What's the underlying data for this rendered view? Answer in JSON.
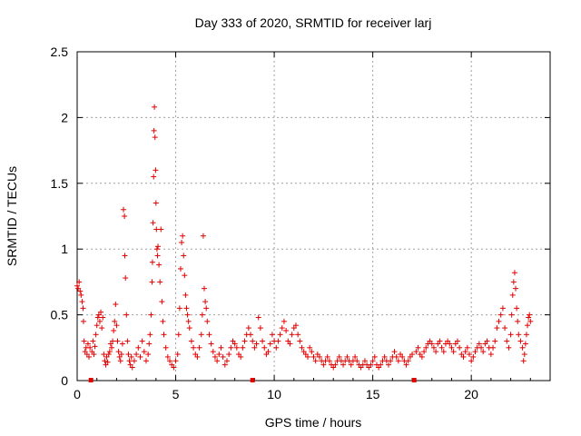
{
  "chart_data": {
    "type": "scatter",
    "title": "Day 333 of 2020, SRMTID for receiver larj",
    "xlabel": "GPS time / hours",
    "ylabel": "SRMTID / TECUs",
    "xlim": [
      0,
      24
    ],
    "ylim": [
      0,
      2.5
    ],
    "xticks": [
      0,
      5,
      10,
      15,
      20
    ],
    "yticks": [
      0,
      0.5,
      1,
      1.5,
      2,
      2.5
    ],
    "xtick_labels": [
      "0",
      "5",
      "10",
      "15",
      "20"
    ],
    "ytick_labels": [
      "0",
      "0.5",
      "1",
      "1.5",
      "2",
      "2.5"
    ],
    "grid": true,
    "marker": "+",
    "color": "#e00000",
    "gap_marker_color": "#e00000",
    "gap_markers_x": [
      0.7,
      8.9,
      17.1
    ],
    "series": [
      {
        "name": "SRMTID",
        "points": [
          [
            0.0,
            0.72
          ],
          [
            0.05,
            0.7
          ],
          [
            0.1,
            0.75
          ],
          [
            0.15,
            0.68
          ],
          [
            0.2,
            0.65
          ],
          [
            0.25,
            0.6
          ],
          [
            0.3,
            0.55
          ],
          [
            0.32,
            0.45
          ],
          [
            0.35,
            0.3
          ],
          [
            0.4,
            0.22
          ],
          [
            0.45,
            0.25
          ],
          [
            0.5,
            0.2
          ],
          [
            0.55,
            0.28
          ],
          [
            0.6,
            0.18
          ],
          [
            0.65,
            0.25
          ],
          [
            0.75,
            0.22
          ],
          [
            0.8,
            0.3
          ],
          [
            0.85,
            0.2
          ],
          [
            0.9,
            0.26
          ],
          [
            0.95,
            0.35
          ],
          [
            1.0,
            0.42
          ],
          [
            1.05,
            0.48
          ],
          [
            1.1,
            0.5
          ],
          [
            1.15,
            0.45
          ],
          [
            1.2,
            0.52
          ],
          [
            1.25,
            0.4
          ],
          [
            1.3,
            0.48
          ],
          [
            1.35,
            0.2
          ],
          [
            1.4,
            0.15
          ],
          [
            1.45,
            0.12
          ],
          [
            1.5,
            0.18
          ],
          [
            1.55,
            0.14
          ],
          [
            1.6,
            0.2
          ],
          [
            1.65,
            0.22
          ],
          [
            1.7,
            0.28
          ],
          [
            1.75,
            0.25
          ],
          [
            1.8,
            0.3
          ],
          [
            1.85,
            0.38
          ],
          [
            1.9,
            0.45
          ],
          [
            1.95,
            0.58
          ],
          [
            2.0,
            0.42
          ],
          [
            2.05,
            0.3
          ],
          [
            2.1,
            0.22
          ],
          [
            2.15,
            0.18
          ],
          [
            2.2,
            0.15
          ],
          [
            2.25,
            0.2
          ],
          [
            2.3,
            0.28
          ],
          [
            2.35,
            1.3
          ],
          [
            2.4,
            1.25
          ],
          [
            2.42,
            0.95
          ],
          [
            2.45,
            0.78
          ],
          [
            2.5,
            0.5
          ],
          [
            2.55,
            0.3
          ],
          [
            2.6,
            0.2
          ],
          [
            2.65,
            0.15
          ],
          [
            2.7,
            0.12
          ],
          [
            2.75,
            0.18
          ],
          [
            2.8,
            0.1
          ],
          [
            2.9,
            0.15
          ],
          [
            3.0,
            0.2
          ],
          [
            3.1,
            0.25
          ],
          [
            3.2,
            0.18
          ],
          [
            3.3,
            0.3
          ],
          [
            3.4,
            0.22
          ],
          [
            3.5,
            0.15
          ],
          [
            3.6,
            0.2
          ],
          [
            3.65,
            0.28
          ],
          [
            3.7,
            0.35
          ],
          [
            3.75,
            0.5
          ],
          [
            3.8,
            0.75
          ],
          [
            3.82,
            0.9
          ],
          [
            3.85,
            1.2
          ],
          [
            3.88,
            1.55
          ],
          [
            3.9,
            1.9
          ],
          [
            3.92,
            2.08
          ],
          [
            3.95,
            1.85
          ],
          [
            3.98,
            1.6
          ],
          [
            4.0,
            1.35
          ],
          [
            4.02,
            1.15
          ],
          [
            4.05,
            1.0
          ],
          [
            4.08,
            0.95
          ],
          [
            4.1,
            1.02
          ],
          [
            4.15,
            0.88
          ],
          [
            4.2,
            0.75
          ],
          [
            4.25,
            1.15
          ],
          [
            4.3,
            0.6
          ],
          [
            4.35,
            0.45
          ],
          [
            4.4,
            0.35
          ],
          [
            4.5,
            0.25
          ],
          [
            4.6,
            0.18
          ],
          [
            4.7,
            0.15
          ],
          [
            4.8,
            0.12
          ],
          [
            4.9,
            0.1
          ],
          [
            5.0,
            0.15
          ],
          [
            5.1,
            0.2
          ],
          [
            5.15,
            0.35
          ],
          [
            5.2,
            0.55
          ],
          [
            5.25,
            0.85
          ],
          [
            5.3,
            1.05
          ],
          [
            5.35,
            1.1
          ],
          [
            5.4,
            0.95
          ],
          [
            5.45,
            0.8
          ],
          [
            5.5,
            0.65
          ],
          [
            5.55,
            0.55
          ],
          [
            5.6,
            0.5
          ],
          [
            5.65,
            0.45
          ],
          [
            5.7,
            0.4
          ],
          [
            5.8,
            0.3
          ],
          [
            5.9,
            0.25
          ],
          [
            6.0,
            0.2
          ],
          [
            6.1,
            0.18
          ],
          [
            6.2,
            0.25
          ],
          [
            6.3,
            0.35
          ],
          [
            6.35,
            0.5
          ],
          [
            6.4,
            1.1
          ],
          [
            6.45,
            0.7
          ],
          [
            6.5,
            0.6
          ],
          [
            6.55,
            0.55
          ],
          [
            6.6,
            0.45
          ],
          [
            6.7,
            0.35
          ],
          [
            6.8,
            0.28
          ],
          [
            6.9,
            0.22
          ],
          [
            7.0,
            0.18
          ],
          [
            7.1,
            0.15
          ],
          [
            7.2,
            0.2
          ],
          [
            7.3,
            0.25
          ],
          [
            7.4,
            0.18
          ],
          [
            7.5,
            0.12
          ],
          [
            7.6,
            0.15
          ],
          [
            7.7,
            0.2
          ],
          [
            7.8,
            0.25
          ],
          [
            7.9,
            0.3
          ],
          [
            8.0,
            0.28
          ],
          [
            8.1,
            0.25
          ],
          [
            8.2,
            0.2
          ],
          [
            8.3,
            0.18
          ],
          [
            8.4,
            0.25
          ],
          [
            8.5,
            0.3
          ],
          [
            8.6,
            0.35
          ],
          [
            8.7,
            0.4
          ],
          [
            8.8,
            0.35
          ],
          [
            8.9,
            0.3
          ],
          [
            9.0,
            0.25
          ],
          [
            9.1,
            0.28
          ],
          [
            9.2,
            0.48
          ],
          [
            9.3,
            0.4
          ],
          [
            9.4,
            0.3
          ],
          [
            9.5,
            0.25
          ],
          [
            9.6,
            0.2
          ],
          [
            9.7,
            0.22
          ],
          [
            9.8,
            0.28
          ],
          [
            9.9,
            0.35
          ],
          [
            10.0,
            0.3
          ],
          [
            10.1,
            0.25
          ],
          [
            10.2,
            0.3
          ],
          [
            10.3,
            0.35
          ],
          [
            10.4,
            0.4
          ],
          [
            10.5,
            0.45
          ],
          [
            10.6,
            0.38
          ],
          [
            10.7,
            0.3
          ],
          [
            10.8,
            0.28
          ],
          [
            10.9,
            0.35
          ],
          [
            11.0,
            0.4
          ],
          [
            11.1,
            0.42
          ],
          [
            11.2,
            0.35
          ],
          [
            11.3,
            0.3
          ],
          [
            11.4,
            0.25
          ],
          [
            11.5,
            0.22
          ],
          [
            11.6,
            0.2
          ],
          [
            11.7,
            0.18
          ],
          [
            11.8,
            0.25
          ],
          [
            11.9,
            0.22
          ],
          [
            12.0,
            0.18
          ],
          [
            12.1,
            0.15
          ],
          [
            12.2,
            0.2
          ],
          [
            12.3,
            0.18
          ],
          [
            12.4,
            0.15
          ],
          [
            12.5,
            0.12
          ],
          [
            12.6,
            0.15
          ],
          [
            12.7,
            0.18
          ],
          [
            12.8,
            0.15
          ],
          [
            12.9,
            0.12
          ],
          [
            13.0,
            0.1
          ],
          [
            13.1,
            0.12
          ],
          [
            13.2,
            0.15
          ],
          [
            13.3,
            0.18
          ],
          [
            13.4,
            0.15
          ],
          [
            13.5,
            0.12
          ],
          [
            13.6,
            0.15
          ],
          [
            13.7,
            0.18
          ],
          [
            13.8,
            0.15
          ],
          [
            13.9,
            0.12
          ],
          [
            14.0,
            0.15
          ],
          [
            14.1,
            0.18
          ],
          [
            14.2,
            0.15
          ],
          [
            14.3,
            0.12
          ],
          [
            14.4,
            0.1
          ],
          [
            14.5,
            0.12
          ],
          [
            14.6,
            0.15
          ],
          [
            14.7,
            0.12
          ],
          [
            14.8,
            0.1
          ],
          [
            14.9,
            0.12
          ],
          [
            15.0,
            0.15
          ],
          [
            15.1,
            0.18
          ],
          [
            15.2,
            0.12
          ],
          [
            15.3,
            0.1
          ],
          [
            15.4,
            0.12
          ],
          [
            15.5,
            0.15
          ],
          [
            15.6,
            0.18
          ],
          [
            15.7,
            0.15
          ],
          [
            15.8,
            0.12
          ],
          [
            15.9,
            0.15
          ],
          [
            16.0,
            0.18
          ],
          [
            16.1,
            0.22
          ],
          [
            16.2,
            0.18
          ],
          [
            16.3,
            0.15
          ],
          [
            16.4,
            0.2
          ],
          [
            16.5,
            0.18
          ],
          [
            16.6,
            0.15
          ],
          [
            16.7,
            0.12
          ],
          [
            16.8,
            0.15
          ],
          [
            16.9,
            0.18
          ],
          [
            17.0,
            0.2
          ],
          [
            17.2,
            0.22
          ],
          [
            17.3,
            0.25
          ],
          [
            17.4,
            0.2
          ],
          [
            17.5,
            0.18
          ],
          [
            17.6,
            0.22
          ],
          [
            17.7,
            0.25
          ],
          [
            17.8,
            0.28
          ],
          [
            17.9,
            0.3
          ],
          [
            18.0,
            0.28
          ],
          [
            18.1,
            0.25
          ],
          [
            18.2,
            0.22
          ],
          [
            18.3,
            0.28
          ],
          [
            18.4,
            0.3
          ],
          [
            18.5,
            0.25
          ],
          [
            18.6,
            0.22
          ],
          [
            18.7,
            0.28
          ],
          [
            18.8,
            0.3
          ],
          [
            18.9,
            0.28
          ],
          [
            19.0,
            0.25
          ],
          [
            19.1,
            0.22
          ],
          [
            19.2,
            0.28
          ],
          [
            19.3,
            0.3
          ],
          [
            19.4,
            0.25
          ],
          [
            19.5,
            0.2
          ],
          [
            19.6,
            0.18
          ],
          [
            19.7,
            0.22
          ],
          [
            19.8,
            0.25
          ],
          [
            19.9,
            0.2
          ],
          [
            20.0,
            0.15
          ],
          [
            20.1,
            0.18
          ],
          [
            20.2,
            0.22
          ],
          [
            20.3,
            0.25
          ],
          [
            20.4,
            0.28
          ],
          [
            20.5,
            0.25
          ],
          [
            20.6,
            0.22
          ],
          [
            20.7,
            0.28
          ],
          [
            20.8,
            0.3
          ],
          [
            20.9,
            0.25
          ],
          [
            21.0,
            0.2
          ],
          [
            21.1,
            0.25
          ],
          [
            21.2,
            0.3
          ],
          [
            21.3,
            0.4
          ],
          [
            21.4,
            0.45
          ],
          [
            21.5,
            0.5
          ],
          [
            21.6,
            0.55
          ],
          [
            21.7,
            0.4
          ],
          [
            21.8,
            0.3
          ],
          [
            21.9,
            0.25
          ],
          [
            22.0,
            0.35
          ],
          [
            22.05,
            0.5
          ],
          [
            22.1,
            0.65
          ],
          [
            22.15,
            0.75
          ],
          [
            22.2,
            0.82
          ],
          [
            22.25,
            0.7
          ],
          [
            22.3,
            0.55
          ],
          [
            22.35,
            0.45
          ],
          [
            22.4,
            0.35
          ],
          [
            22.5,
            0.3
          ],
          [
            22.6,
            0.25
          ],
          [
            22.65,
            0.15
          ],
          [
            22.7,
            0.2
          ],
          [
            22.75,
            0.28
          ],
          [
            22.8,
            0.35
          ],
          [
            22.85,
            0.42
          ],
          [
            22.9,
            0.48
          ],
          [
            22.95,
            0.5
          ],
          [
            23.0,
            0.45
          ]
        ]
      }
    ]
  }
}
